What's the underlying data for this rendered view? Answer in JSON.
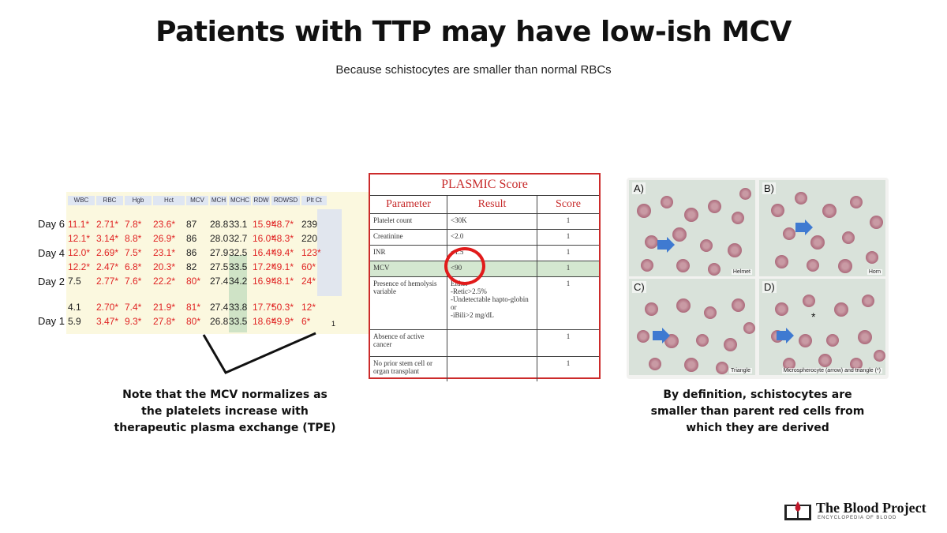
{
  "title": "Patients with TTP may have low-ish MCV",
  "subtitle": "Because schistocytes are smaller than normal RBCs",
  "lab_table": {
    "headers": [
      "WBC",
      "RBC",
      "Hgb",
      "Hct",
      "MCV",
      "MCH",
      "MCHC",
      "RDW",
      "RDWSD",
      "Plt Ct"
    ],
    "day_labels": [
      "Day 6",
      "Day 4",
      "Day 2",
      "Day 1"
    ],
    "rows": [
      [
        "11.1*",
        "2.71*",
        "7.8*",
        "23.6*",
        "87",
        "28.8",
        "33.1",
        "15.9*",
        "48.7*",
        "239"
      ],
      [
        "12.1*",
        "3.14*",
        "8.8*",
        "26.9*",
        "86",
        "28.0",
        "32.7",
        "16.0*",
        "48.3*",
        "220"
      ],
      [
        "12.0*",
        "2.69*",
        "7.5*",
        "23.1*",
        "86",
        "27.9",
        "32.5",
        "16.4*",
        "49.4*",
        "123*"
      ],
      [
        "12.2*",
        "2.47*",
        "6.8*",
        "20.3*",
        "82",
        "27.5",
        "33.5",
        "17.2*",
        "49.1*",
        "60*"
      ],
      [
        "7.5",
        "2.77*",
        "7.6*",
        "22.2*",
        "80*",
        "27.4",
        "34.2",
        "16.9*",
        "48.1*",
        "24*"
      ],
      [
        "4.1",
        "2.70*",
        "7.4*",
        "21.9*",
        "81*",
        "27.4",
        "33.8",
        "17.7*",
        "50.3*",
        "12*"
      ],
      [
        "5.9",
        "3.47*",
        "9.3*",
        "27.8*",
        "80*",
        "26.8",
        "33.5",
        "18.6*",
        "49.9*",
        "6*"
      ]
    ],
    "footnote": "1"
  },
  "note_left": "Note that the MCV normalizes as the platelets increase with therapeutic plasma exchange (TPE)",
  "plasmic": {
    "title": "PLASMIC Score",
    "headers": [
      "Parameter",
      "Result",
      "Score"
    ],
    "rows": [
      {
        "param": "Platelet count",
        "result": "<30K",
        "score": "1"
      },
      {
        "param": "Creatinine",
        "result": "<2.0",
        "score": "1"
      },
      {
        "param": "INR",
        "result": "<1.5",
        "score": "1"
      },
      {
        "param": "MCV",
        "result": "<90",
        "score": "1"
      },
      {
        "param": "Presence of hemolysis variable",
        "result": "Either\n-Retic>2.5%\n-Undetectable hapto-globin or\n-iBili>2 mg/dL",
        "score": "1"
      },
      {
        "param": "Absence of active cancer",
        "result": "",
        "score": "1"
      },
      {
        "param": "No prior stem cell or organ transplant",
        "result": "",
        "score": "1"
      }
    ]
  },
  "smear": {
    "panels": [
      {
        "label": "A)",
        "caption": "Helmet"
      },
      {
        "label": "B)",
        "caption": "Horn"
      },
      {
        "label": "C)",
        "caption": "Triangle"
      },
      {
        "label": "D)",
        "caption": "Microspherocyte (arrow) and triangle (*)"
      }
    ],
    "asterisk": "*"
  },
  "note_right": "By definition, schistocytes are smaller than parent red cells from which they are derived",
  "logo": {
    "name": "The Blood Project",
    "tagline": "ENCYCLOPEDIA OF BLOOD"
  },
  "colors": {
    "abnormal": "#e02424",
    "mcv_highlight": "#cfe3c6",
    "plasmic_border": "#cc2b2b",
    "circle": "#e11b1b",
    "arrow": "#3f7ad1"
  }
}
